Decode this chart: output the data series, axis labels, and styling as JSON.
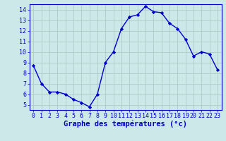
{
  "hours": [
    0,
    1,
    2,
    3,
    4,
    5,
    6,
    7,
    8,
    9,
    10,
    11,
    12,
    13,
    14,
    15,
    16,
    17,
    18,
    19,
    20,
    21,
    22,
    23
  ],
  "temps": [
    8.7,
    7.0,
    6.2,
    6.2,
    6.0,
    5.5,
    5.2,
    4.8,
    6.0,
    9.0,
    10.0,
    12.2,
    13.3,
    13.5,
    14.3,
    13.8,
    13.7,
    12.7,
    12.2,
    11.2,
    9.6,
    10.0,
    9.8,
    8.3
  ],
  "line_color": "#0000cc",
  "marker": "D",
  "marker_size": 2.2,
  "line_width": 1.0,
  "bg_color": "#cce8e8",
  "grid_color": "#b0c8c8",
  "xlabel": "Graphe des températures (°c)",
  "xlabel_color": "#0000cc",
  "xlim": [
    -0.5,
    23.5
  ],
  "ylim": [
    4.5,
    14.5
  ],
  "yticks": [
    5,
    6,
    7,
    8,
    9,
    10,
    11,
    12,
    13,
    14
  ],
  "xticks": [
    0,
    1,
    2,
    3,
    4,
    5,
    6,
    7,
    8,
    9,
    10,
    11,
    12,
    13,
    14,
    15,
    16,
    17,
    18,
    19,
    20,
    21,
    22,
    23
  ],
  "tick_color": "#0000cc",
  "axis_color": "#0000cc",
  "label_fontsize": 7.0,
  "tick_fontsize": 6.0,
  "xlabel_fontsize": 7.5,
  "xlabel_bold": true
}
